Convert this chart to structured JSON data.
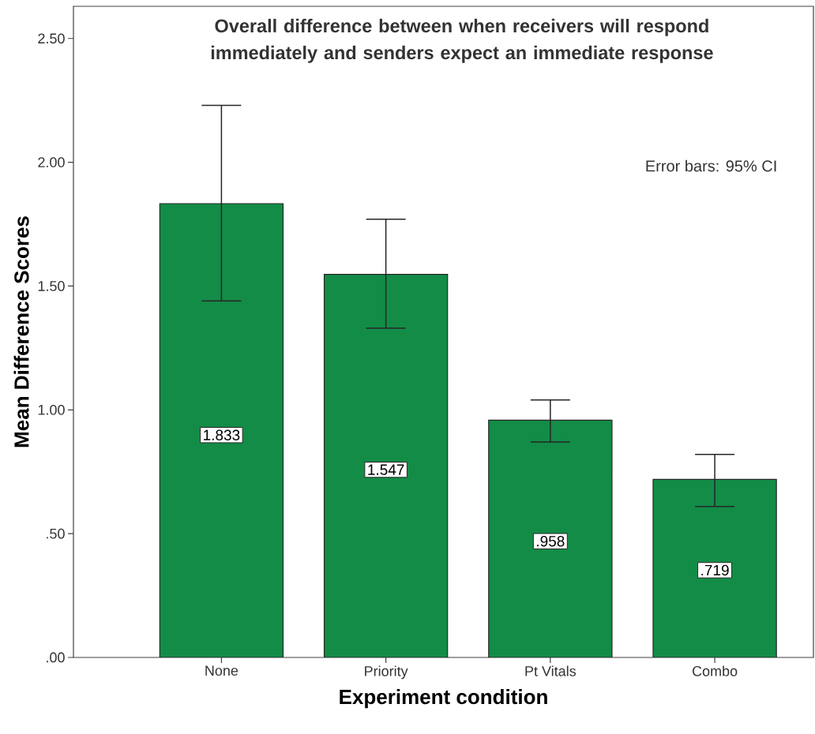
{
  "chart_data": {
    "type": "bar",
    "title": "Overall difference between when receivers will respond immediately and senders expect an immediate response",
    "xlabel": "Experiment condition",
    "ylabel": "Mean Difference Scores",
    "annotations": [
      "Error bars: 95% CI"
    ],
    "categories": [
      "None",
      "Priority",
      "Pt Vitals",
      "Combo"
    ],
    "values": [
      1.833,
      1.547,
      0.958,
      0.719
    ],
    "value_labels": [
      "1.833",
      "1.547",
      ".958",
      ".719"
    ],
    "errors": [
      [
        1.44,
        2.23
      ],
      [
        1.33,
        1.77
      ],
      [
        0.87,
        1.04
      ],
      [
        0.61,
        0.82
      ]
    ],
    "color": "#138c47",
    "ylim": [
      0,
      2.63
    ],
    "yticks": [
      {
        "value": 0,
        "label": ".00"
      },
      {
        "value": 0.5,
        "label": ".50"
      },
      {
        "value": 1,
        "label": "1.00"
      },
      {
        "value": 1.5,
        "label": "1.50"
      },
      {
        "value": 2,
        "label": "2.00"
      },
      {
        "value": 2.5,
        "label": "2.50"
      }
    ]
  }
}
